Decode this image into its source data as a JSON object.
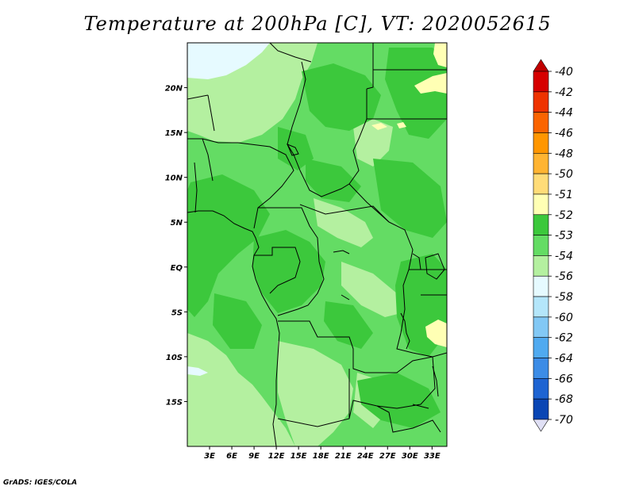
{
  "title": "Temperature at 200hPa [C], VT: 2020052615",
  "credit": "GrADS: IGES/COLA",
  "map": {
    "lon_range": [
      0,
      35
    ],
    "lat_range": [
      -20,
      25
    ],
    "lat_ticks": [
      {
        "value": 20,
        "label": "20N"
      },
      {
        "value": 15,
        "label": "15N"
      },
      {
        "value": 10,
        "label": "10N"
      },
      {
        "value": 5,
        "label": "5N"
      },
      {
        "value": 0,
        "label": "EQ"
      },
      {
        "value": -5,
        "label": "5S"
      },
      {
        "value": -10,
        "label": "10S"
      },
      {
        "value": -15,
        "label": "15S"
      }
    ],
    "lon_ticks": [
      {
        "value": 3,
        "label": "3E"
      },
      {
        "value": 6,
        "label": "6E"
      },
      {
        "value": 9,
        "label": "9E"
      },
      {
        "value": 12,
        "label": "12E"
      },
      {
        "value": 15,
        "label": "15E"
      },
      {
        "value": 18,
        "label": "18E"
      },
      {
        "value": 21,
        "label": "21E"
      },
      {
        "value": 24,
        "label": "24E"
      },
      {
        "value": 27,
        "label": "27E"
      },
      {
        "value": 30,
        "label": "30E"
      },
      {
        "value": 33,
        "label": "33E"
      }
    ]
  },
  "colorbar": {
    "levels": [
      {
        "label": "-40",
        "color": "#d60000"
      },
      {
        "label": "-42",
        "color": "#ee3300"
      },
      {
        "label": "-44",
        "color": "#fa6400"
      },
      {
        "label": "-46",
        "color": "#ff9600"
      },
      {
        "label": "-48",
        "color": "#ffb432"
      },
      {
        "label": "-50",
        "color": "#ffdc78"
      },
      {
        "label": "-51",
        "color": "#ffffb4"
      },
      {
        "label": "-52",
        "color": "#3cc83c"
      },
      {
        "label": "-53",
        "color": "#64dc64"
      },
      {
        "label": "-54",
        "color": "#b4f0a0"
      },
      {
        "label": "-56",
        "color": "#e6faff"
      },
      {
        "label": "-58",
        "color": "#b4e6fa"
      },
      {
        "label": "-60",
        "color": "#82c8f5"
      },
      {
        "label": "-62",
        "color": "#50aaf0"
      },
      {
        "label": "-64",
        "color": "#3c8ce6"
      },
      {
        "label": "-66",
        "color": "#1e64d2"
      },
      {
        "label": "-68",
        "color": "#0a46b4"
      },
      {
        "label": "-70",
        "color": "#0a1e96"
      }
    ],
    "top_color": "#c00000",
    "bottom_color": "#e0e0f5"
  }
}
